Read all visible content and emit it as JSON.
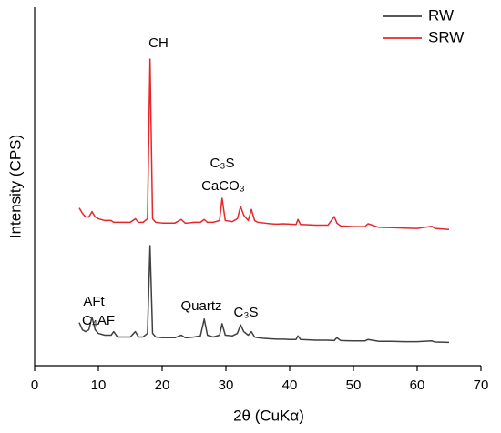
{
  "chart_data": {
    "type": "line",
    "xlabel": "2θ (CuKα)",
    "ylabel": "Intensity (CPS)",
    "xlim": [
      0,
      70
    ],
    "xticks": [
      0,
      10,
      20,
      30,
      40,
      50,
      60,
      70
    ],
    "ylim": [
      0,
      100
    ],
    "legend": "upper right",
    "x": [
      7,
      7.5,
      8,
      8.5,
      9,
      9.5,
      10,
      11,
      12,
      12.4,
      13,
      14,
      15,
      15.8,
      16.3,
      17,
      17.7,
      18.1,
      18.5,
      19,
      20,
      21,
      22,
      23,
      23.6,
      24,
      25,
      26,
      26.6,
      27.1,
      28,
      29,
      29.4,
      29.9,
      31,
      31.8,
      32.3,
      32.8,
      33.5,
      34,
      34.5,
      35,
      36,
      37,
      38,
      39,
      40,
      41,
      41.3,
      41.7,
      43,
      44,
      45,
      46,
      47,
      47.4,
      48,
      50,
      51.8,
      52.3,
      54,
      56,
      58,
      60,
      62.3,
      62.8,
      65
    ],
    "series": [
      {
        "name": "RW",
        "color": "#404040",
        "values": [
          12,
          10,
          9.5,
          10,
          13.5,
          10,
          9,
          8.5,
          8.5,
          9.5,
          8,
          8,
          8,
          9.5,
          8,
          8,
          9,
          33.5,
          9,
          8,
          7.8,
          7.8,
          7.8,
          8.5,
          7.8,
          7.8,
          8,
          8.3,
          13,
          8.5,
          8,
          8.5,
          11.7,
          8.5,
          8.3,
          9,
          11.4,
          9.5,
          8.5,
          9.5,
          8,
          7.8,
          7.6,
          7.5,
          7.4,
          7.4,
          7.3,
          7.3,
          8.3,
          7.3,
          7.2,
          7.1,
          7.1,
          7.1,
          7.0,
          7.8,
          7,
          6.9,
          6.9,
          7.3,
          6.8,
          6.8,
          6.7,
          6.7,
          6.9,
          6.6,
          6.5
        ]
      },
      {
        "name": "SRW",
        "color": "#e8262a",
        "values": [
          44,
          42.5,
          41.5,
          41.5,
          43,
          41.5,
          41,
          40.5,
          40.5,
          40,
          40,
          40,
          40,
          41,
          40,
          40,
          41,
          85.5,
          41,
          40,
          39.8,
          39.8,
          39.8,
          40.8,
          39.8,
          39.8,
          40,
          40,
          40.8,
          40,
          40,
          40.5,
          46.7,
          40.5,
          40.2,
          41,
          44.4,
          42,
          40.5,
          43.6,
          40.5,
          40,
          39.8,
          39.6,
          39.5,
          39.6,
          39.5,
          39.4,
          40.8,
          39.4,
          39.3,
          39.2,
          39.2,
          39.2,
          41.6,
          39.8,
          39,
          38.8,
          38.8,
          39.6,
          38.6,
          38.5,
          38.4,
          38.3,
          38.9,
          38.3,
          38
        ]
      }
    ],
    "annotations": [
      "CH",
      "C₃S",
      "CaCO₃",
      "AFt",
      "C₄AF",
      "Quartz",
      "C₃S"
    ]
  }
}
